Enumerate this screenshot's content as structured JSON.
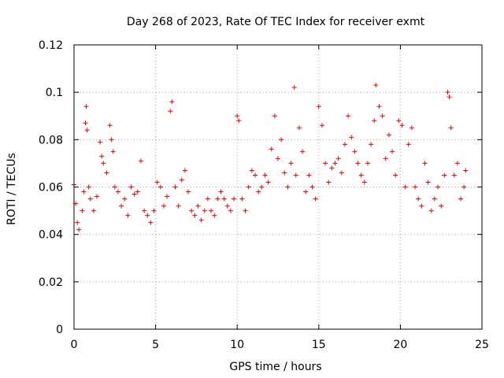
{
  "chart_data": {
    "type": "scatter",
    "title": "Day 268 of 2023, Rate Of TEC Index for receiver exmt",
    "xlabel": "GPS time / hours",
    "ylabel": "ROTI / TECUs",
    "xlim": [
      0,
      25
    ],
    "ylim": [
      0,
      0.12
    ],
    "x_ticks": [
      0,
      5,
      10,
      15,
      20,
      25
    ],
    "y_ticks": [
      0,
      0.02,
      0.04,
      0.06,
      0.08,
      0.1,
      0.12
    ],
    "x_tick_labels": [
      "0",
      "5",
      "10",
      "15",
      "20",
      "25"
    ],
    "y_tick_labels": [
      "0",
      "0.02",
      "0.04",
      "0.06",
      "0.08",
      "0.1",
      "0.12"
    ],
    "grid": true,
    "marker": "plus",
    "color": "#ff0000",
    "series": [
      {
        "x": [
          0.0,
          0.1,
          0.2,
          0.3,
          0.5,
          0.6,
          0.7,
          0.75,
          0.8,
          0.9,
          1.0,
          1.2,
          1.4,
          1.6,
          1.7,
          1.8,
          2.0,
          2.2,
          2.3,
          2.4,
          2.5,
          2.7,
          2.9,
          3.1,
          3.3,
          3.5,
          3.7,
          3.9,
          4.1,
          4.3,
          4.5,
          4.7,
          4.9,
          5.1,
          5.3,
          5.5,
          5.7,
          5.9,
          6.0,
          6.2,
          6.4,
          6.6,
          6.8,
          7.0,
          7.2,
          7.4,
          7.6,
          7.8,
          8.0,
          8.2,
          8.4,
          8.6,
          8.8,
          9.0,
          9.2,
          9.4,
          9.6,
          9.8,
          10.0,
          10.1,
          10.3,
          10.5,
          10.7,
          10.9,
          11.1,
          11.3,
          11.5,
          11.7,
          11.9,
          12.1,
          12.3,
          12.5,
          12.7,
          12.9,
          13.1,
          13.3,
          13.5,
          13.6,
          13.8,
          14.0,
          14.2,
          14.4,
          14.6,
          14.8,
          15.0,
          15.2,
          15.4,
          15.6,
          15.8,
          16.0,
          16.2,
          16.4,
          16.6,
          16.8,
          17.0,
          17.2,
          17.4,
          17.6,
          17.8,
          18.0,
          18.2,
          18.4,
          18.5,
          18.7,
          18.9,
          19.1,
          19.3,
          19.5,
          19.7,
          19.9,
          20.1,
          20.3,
          20.5,
          20.7,
          20.9,
          21.1,
          21.3,
          21.5,
          21.7,
          21.9,
          22.1,
          22.3,
          22.5,
          22.7,
          22.9,
          23.0,
          23.1,
          23.3,
          23.5,
          23.7,
          23.9,
          24.0
        ],
        "y": [
          0.061,
          0.053,
          0.045,
          0.042,
          0.05,
          0.058,
          0.087,
          0.094,
          0.084,
          0.06,
          0.055,
          0.05,
          0.056,
          0.079,
          0.073,
          0.07,
          0.066,
          0.086,
          0.08,
          0.075,
          0.06,
          0.058,
          0.052,
          0.055,
          0.048,
          0.06,
          0.057,
          0.058,
          0.071,
          0.05,
          0.048,
          0.045,
          0.05,
          0.062,
          0.06,
          0.052,
          0.056,
          0.092,
          0.096,
          0.06,
          0.052,
          0.063,
          0.067,
          0.058,
          0.05,
          0.048,
          0.052,
          0.046,
          0.05,
          0.055,
          0.05,
          0.048,
          0.055,
          0.058,
          0.055,
          0.052,
          0.05,
          0.055,
          0.09,
          0.088,
          0.055,
          0.05,
          0.06,
          0.067,
          0.065,
          0.058,
          0.06,
          0.065,
          0.062,
          0.076,
          0.09,
          0.072,
          0.08,
          0.066,
          0.06,
          0.07,
          0.102,
          0.065,
          0.085,
          0.075,
          0.058,
          0.065,
          0.06,
          0.055,
          0.094,
          0.086,
          0.07,
          0.062,
          0.068,
          0.07,
          0.072,
          0.066,
          0.078,
          0.09,
          0.081,
          0.075,
          0.07,
          0.065,
          0.062,
          0.07,
          0.078,
          0.088,
          0.103,
          0.094,
          0.09,
          0.072,
          0.082,
          0.075,
          0.065,
          0.088,
          0.086,
          0.06,
          0.078,
          0.085,
          0.06,
          0.055,
          0.052,
          0.07,
          0.062,
          0.05,
          0.055,
          0.06,
          0.052,
          0.065,
          0.1,
          0.098,
          0.085,
          0.065,
          0.07,
          0.055,
          0.06,
          0.067
        ]
      }
    ]
  }
}
